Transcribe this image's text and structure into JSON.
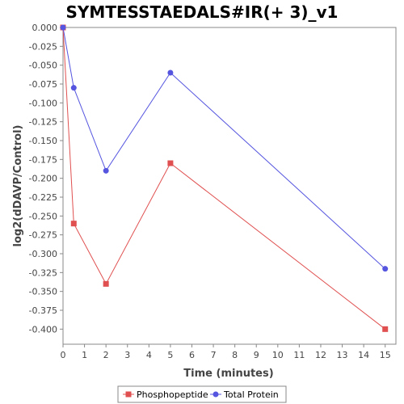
{
  "chart_data": {
    "type": "line",
    "title": "SYMTESSTAEDALS#IR(+ 3)_v1",
    "xlabel": "Time (minutes)",
    "ylabel": "log2(dDAVP/Control)",
    "xlim": [
      0,
      15.5
    ],
    "ylim": [
      -0.42,
      0.0
    ],
    "x_ticks": [
      0,
      1,
      2,
      3,
      4,
      5,
      6,
      7,
      8,
      9,
      10,
      11,
      12,
      13,
      14,
      15
    ],
    "y_ticks": [
      0.0,
      -0.025,
      -0.05,
      -0.075,
      -0.1,
      -0.125,
      -0.15,
      -0.175,
      -0.2,
      -0.225,
      -0.25,
      -0.275,
      -0.3,
      -0.325,
      -0.35,
      -0.375,
      -0.4
    ],
    "y_tick_labels": [
      "0.000",
      "-0.025",
      "-0.050",
      "-0.075",
      "-0.100",
      "-0.125",
      "-0.150",
      "-0.175",
      "-0.200",
      "-0.225",
      "-0.250",
      "-0.275",
      "-0.300",
      "-0.325",
      "-0.350",
      "-0.375",
      "-0.400"
    ],
    "grid": false,
    "legend_position": "bottom",
    "series": [
      {
        "name": "Phosphopeptide",
        "color": "#e05050",
        "marker": "square",
        "x": [
          0,
          0.5,
          2,
          5,
          15
        ],
        "y": [
          0.0,
          -0.26,
          -0.34,
          -0.18,
          -0.4
        ]
      },
      {
        "name": "Total Protein",
        "color": "#5555e0",
        "marker": "circle",
        "x": [
          0,
          0.5,
          2,
          5,
          15
        ],
        "y": [
          0.0,
          -0.08,
          -0.19,
          -0.06,
          -0.32
        ]
      }
    ]
  }
}
